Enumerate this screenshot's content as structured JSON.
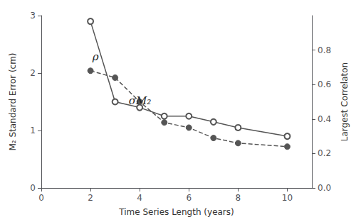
{
  "chart_data": {
    "type": "line",
    "x": [
      2,
      3,
      4,
      5,
      6,
      7,
      8,
      10
    ],
    "series": [
      {
        "color": "#555555",
        "line_style": "solid",
        "marker": "open_circle",
        "values": [
          2.9,
          1.5,
          1.4,
          1.25,
          1.25,
          1.15,
          1.05,
          0.9
        ]
      },
      {
        "color": "#555555",
        "line_style": "dashed",
        "marker": "filled_circle",
        "axis": "y2",
        "values": [
          0.68,
          0.64,
          0.5,
          0.38,
          0.35,
          0.29,
          0.26,
          0.24
        ]
      }
    ],
    "xlabel": "Time Series Length (years)",
    "ylabel": "M₂ Standard Error (cm)",
    "y2label": "Largest Correlaton",
    "xlim": [
      0,
      11
    ],
    "xticks": [
      0,
      2,
      4,
      6,
      8,
      10
    ],
    "ylim": [
      0,
      3.0
    ],
    "yticks": [
      0,
      1,
      2,
      3
    ],
    "y2lim": [
      0.0,
      1.0
    ],
    "y2ticks": [
      {
        "value": 0.0,
        "label": "0.0"
      },
      0.2,
      0.4,
      0.6,
      0.8
    ],
    "annotations": [
      {
        "text": "ρ",
        "x": 2.08,
        "y": 2.28
      },
      {
        "text": "σM₂",
        "x": 3.55,
        "y": 1.52
      }
    ],
    "grid": false
  }
}
